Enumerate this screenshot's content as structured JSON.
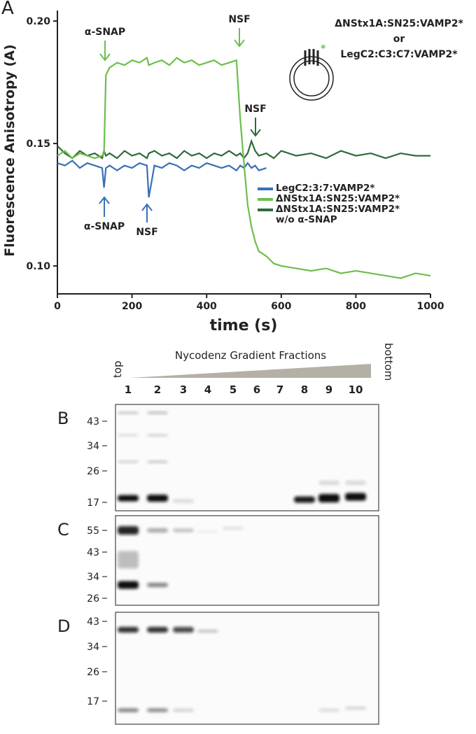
{
  "chart_data": {
    "type": "line",
    "panel_label": "A",
    "y_label": "Fluorescence Anisotropy (A)",
    "x_label": "time (s)",
    "inset_labels": [
      "ΔNStx1A:SN25:VAMP2*",
      "or",
      "LegC2:C3:C7:VAMP2*"
    ],
    "annotations": [
      {
        "text": "α-SNAP",
        "color": "#6cbf4b"
      },
      {
        "text": "NSF",
        "color": "#6cbf4b"
      },
      {
        "text": "NSF",
        "color": "#2e6b3a"
      },
      {
        "text": "α-SNAP",
        "color": "#3a6fb5"
      },
      {
        "text": "NSF",
        "color": "#3a6fb5"
      }
    ],
    "xlim": [
      0,
      1000
    ],
    "xticks": [
      0,
      200,
      400,
      600,
      800,
      1000
    ],
    "ylim": [
      0.0886,
      0.2043
    ],
    "yticks": [
      {
        "value": 0.1,
        "label": "0.10"
      },
      0.15,
      {
        "value": 0.2,
        "label": "0.20"
      }
    ],
    "x": [
      0,
      20,
      40,
      60,
      80,
      100,
      120,
      125,
      130,
      140,
      160,
      180,
      200,
      220,
      240,
      245,
      260,
      280,
      300,
      320,
      340,
      360,
      380,
      400,
      420,
      440,
      460,
      480,
      490,
      500,
      510,
      520,
      530,
      540,
      560,
      580,
      600,
      640,
      680,
      720,
      760,
      800,
      840,
      880,
      920,
      960,
      1000
    ],
    "series": [
      {
        "name": "LegC2:3:7:VAMP2*",
        "color": "#3a6fb5",
        "values": [
          0.142,
          0.141,
          0.143,
          0.14,
          0.142,
          0.141,
          0.14,
          0.132,
          0.14,
          0.141,
          0.139,
          0.141,
          0.14,
          0.142,
          0.141,
          0.128,
          0.141,
          0.14,
          0.142,
          0.141,
          0.139,
          0.141,
          0.14,
          0.142,
          0.141,
          0.14,
          0.141,
          0.139,
          0.141,
          0.14,
          0.142,
          0.14,
          0.141,
          0.139,
          0.14,
          null,
          null,
          null,
          null,
          null,
          null,
          null,
          null,
          null,
          null,
          null,
          null
        ]
      },
      {
        "name": "ΔNStx1A:SN25:VAMP2*",
        "color": "#6cbf4b",
        "values": [
          0.145,
          0.147,
          0.144,
          0.146,
          0.145,
          0.144,
          0.145,
          0.146,
          0.178,
          0.181,
          0.183,
          0.182,
          0.184,
          0.183,
          0.185,
          0.182,
          0.183,
          0.184,
          0.182,
          0.185,
          0.183,
          0.184,
          0.182,
          0.183,
          0.184,
          0.182,
          0.183,
          0.184,
          0.16,
          0.142,
          0.125,
          0.116,
          0.11,
          0.106,
          0.104,
          0.101,
          0.1,
          0.099,
          0.098,
          0.099,
          0.097,
          0.098,
          0.097,
          0.096,
          0.095,
          0.097,
          0.096
        ]
      },
      {
        "name": "ΔNStx1A:SN25:VAMP2* w/o α-SNAP",
        "color": "#2e6b3a",
        "values": [
          0.149,
          0.146,
          0.144,
          0.147,
          0.145,
          0.146,
          0.144,
          0.147,
          0.145,
          0.146,
          0.144,
          0.147,
          0.145,
          0.146,
          0.144,
          0.146,
          0.147,
          0.145,
          0.146,
          0.144,
          0.147,
          0.145,
          0.146,
          0.144,
          0.146,
          0.145,
          0.147,
          0.145,
          0.146,
          0.144,
          0.146,
          0.151,
          0.147,
          0.145,
          0.146,
          0.144,
          0.147,
          0.145,
          0.146,
          0.144,
          0.147,
          0.145,
          0.146,
          0.144,
          0.146,
          0.145,
          0.145
        ]
      }
    ]
  },
  "gel": {
    "title": "Nycodenz Gradient Fractions",
    "top_label": "top",
    "bottom_label": "bottom",
    "lanes": [
      "1",
      "2",
      "3",
      "4",
      "5",
      "6",
      "7",
      "8",
      "9",
      "10"
    ],
    "panels": [
      {
        "label": "B",
        "markers": [
          "43",
          "34",
          "26",
          "17"
        ]
      },
      {
        "label": "C",
        "markers": [
          "55",
          "43",
          "34",
          "26"
        ]
      },
      {
        "label": "D",
        "markers": [
          "43",
          "34",
          "26",
          "17"
        ]
      }
    ]
  }
}
